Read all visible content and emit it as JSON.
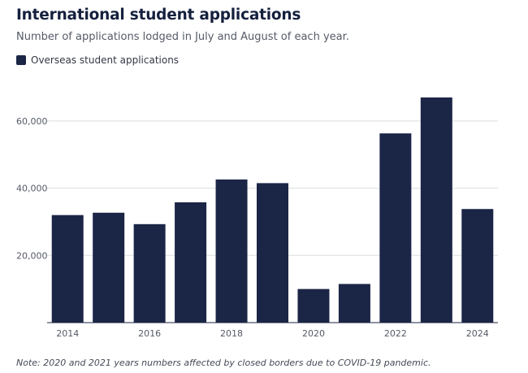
{
  "chart_data": {
    "type": "bar",
    "title": "International student applications",
    "subtitle": "Number of applications lodged in July and August of each year.",
    "categories": [
      "2014",
      "2015",
      "2016",
      "2017",
      "2018",
      "2019",
      "2020",
      "2021",
      "2022",
      "2023",
      "2024"
    ],
    "series": [
      {
        "name": "Overseas student applications",
        "values": [
          32000,
          32700,
          29300,
          35800,
          42600,
          41500,
          10000,
          11500,
          56300,
          67000,
          33800
        ]
      }
    ],
    "x_tick_labels": [
      "2014",
      "2016",
      "2018",
      "2020",
      "2022",
      "2024"
    ],
    "y_ticks": [
      20000,
      40000,
      60000
    ],
    "y_tick_labels": [
      "20,000",
      "40,000",
      "60,000"
    ],
    "ylim": [
      0,
      70000
    ],
    "grid": true,
    "legend_position": "top-left",
    "bar_color": "#1b2546",
    "note": "Note: 2020 and 2021 years numbers affected by closed borders due to COVID-19 pandemic."
  }
}
